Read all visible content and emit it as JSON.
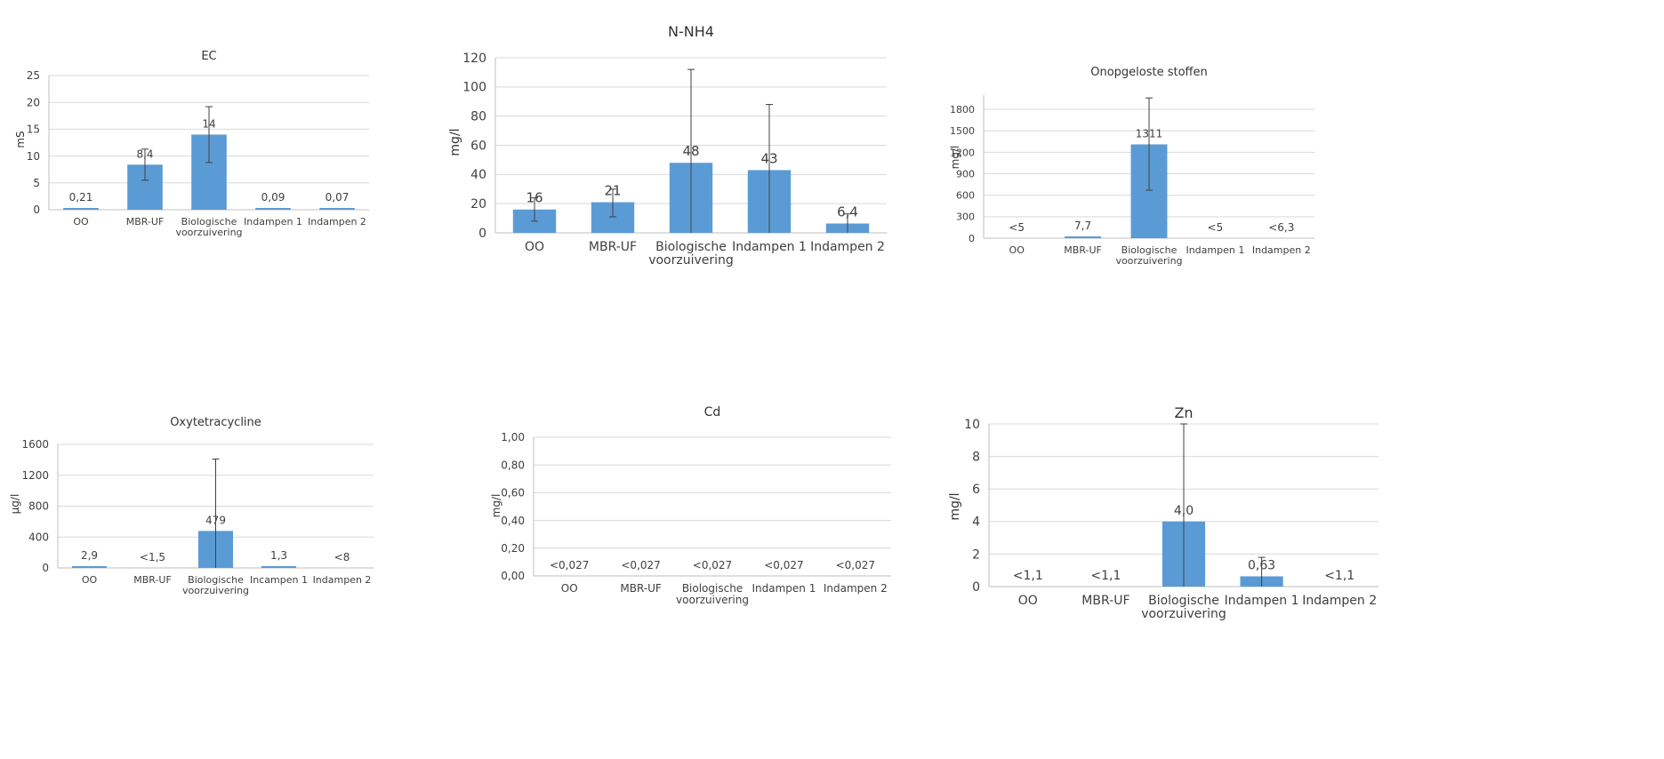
{
  "colors": {
    "bar": "#5b9bd5",
    "grid": "#d9d9d9",
    "text": "#404040"
  },
  "chart_data": [
    {
      "type": "bar",
      "title": "EC",
      "xlabel": "",
      "ylabel": "mS",
      "ylim": [
        0,
        25
      ],
      "yticks": [
        "0",
        "5",
        "10",
        "15",
        "20",
        "25"
      ],
      "ytick_values": [
        0,
        5,
        10,
        15,
        20,
        25
      ],
      "categories": [
        [
          "OO"
        ],
        [
          "MBR-UF"
        ],
        [
          "Biologische",
          "voorzuivering"
        ],
        [
          "Indampen 1"
        ],
        [
          "Indampen 2"
        ]
      ],
      "values": [
        0.21,
        8.4,
        14,
        0.09,
        0.07
      ],
      "labels": [
        "0,21",
        "8,4",
        "14",
        "0,09",
        "0,07"
      ],
      "error_high": [
        null,
        11.3,
        19.2,
        null,
        null
      ],
      "error_low": [
        null,
        5.5,
        8.8,
        null,
        null
      ]
    },
    {
      "type": "bar",
      "title": "N-NH4",
      "xlabel": "",
      "ylabel": "mg/l",
      "ylim": [
        0,
        120
      ],
      "yticks": [
        "0",
        "20",
        "40",
        "60",
        "80",
        "100",
        "120"
      ],
      "ytick_values": [
        0,
        20,
        40,
        60,
        80,
        100,
        120
      ],
      "categories": [
        [
          "OO"
        ],
        [
          "MBR-UF"
        ],
        [
          "Biologische",
          "voorzuivering"
        ],
        [
          "Indampen 1"
        ],
        [
          "Indampen 2"
        ]
      ],
      "values": [
        16,
        21,
        48,
        43,
        6.4
      ],
      "labels": [
        "16",
        "21",
        "48",
        "43",
        "6,4"
      ],
      "error_high": [
        24,
        30,
        112,
        88,
        13
      ],
      "error_low": [
        8,
        11,
        0,
        0,
        0
      ]
    },
    {
      "type": "bar",
      "title": "Onopgeloste stoffen",
      "xlabel": "",
      "ylabel": "mg/l",
      "ylim": [
        0,
        2000
      ],
      "yticks": [
        "0",
        "300",
        "600",
        "900",
        "1200",
        "1500",
        "1800"
      ],
      "ytick_values": [
        0,
        300,
        600,
        900,
        1200,
        1500,
        1800
      ],
      "categories": [
        [
          "OO"
        ],
        [
          "MBR-UF"
        ],
        [
          "Biologische",
          "voorzuivering"
        ],
        [
          "Indampen 1"
        ],
        [
          "Indampen 2"
        ]
      ],
      "values": [
        0,
        7.7,
        1311,
        0,
        0
      ],
      "labels": [
        "<5",
        "7,7",
        "1311",
        "<5",
        "<6,3"
      ],
      "error_high": [
        null,
        null,
        1960,
        null,
        null
      ],
      "error_low": [
        null,
        null,
        670,
        null,
        null
      ]
    },
    {
      "type": "bar",
      "title": "Oxytetracycline",
      "xlabel": "",
      "ylabel": "µg/l",
      "ylim": [
        0,
        1600
      ],
      "yticks": [
        "0",
        "400",
        "800",
        "1200",
        "1600"
      ],
      "ytick_values": [
        0,
        400,
        800,
        1200,
        1600
      ],
      "categories": [
        [
          "OO"
        ],
        [
          "MBR-UF"
        ],
        [
          "Biologische",
          "voorzuivering"
        ],
        [
          "Incampen 1"
        ],
        [
          "Indampen 2"
        ]
      ],
      "values": [
        2.9,
        0,
        479,
        1.3,
        0
      ],
      "labels": [
        "2,9",
        "<1,5",
        "479",
        "1,3",
        "<8"
      ],
      "error_high": [
        null,
        null,
        1410,
        null,
        null
      ],
      "error_low": [
        null,
        null,
        0,
        null,
        null
      ]
    },
    {
      "type": "bar",
      "title": "Cd",
      "xlabel": "",
      "ylabel": "mg/l",
      "ylim": [
        0,
        1
      ],
      "yticks": [
        "0,00",
        "0,20",
        "0,40",
        "0,60",
        "0,80",
        "1,00"
      ],
      "ytick_values": [
        0,
        0.2,
        0.4,
        0.6,
        0.8,
        1.0
      ],
      "categories": [
        [
          "OO"
        ],
        [
          "MBR-UF"
        ],
        [
          "Biologische",
          "voorzuivering"
        ],
        [
          "Indampen 1"
        ],
        [
          "Indampen 2"
        ]
      ],
      "values": [
        0,
        0,
        0,
        0,
        0
      ],
      "labels": [
        "<0,027",
        "<0,027",
        "<0,027",
        "<0,027",
        "<0,027"
      ],
      "error_high": [
        null,
        null,
        null,
        null,
        null
      ],
      "error_low": [
        null,
        null,
        null,
        null,
        null
      ]
    },
    {
      "type": "bar",
      "title": "Zn",
      "xlabel": "",
      "ylabel": "mg/l",
      "ylim": [
        0,
        10
      ],
      "yticks": [
        "0",
        "2",
        "4",
        "6",
        "8",
        "10"
      ],
      "ytick_values": [
        0,
        2,
        4,
        6,
        8,
        10
      ],
      "categories": [
        [
          "OO"
        ],
        [
          "MBR-UF"
        ],
        [
          "Biologische",
          "voorzuivering"
        ],
        [
          "Indampen 1"
        ],
        [
          "Indampen 2"
        ]
      ],
      "values": [
        0,
        0,
        4.0,
        0.63,
        0
      ],
      "labels": [
        "<1,1",
        "<1,1",
        "4,0",
        "0,63",
        "<1,1"
      ],
      "error_high": [
        null,
        null,
        10,
        1.8,
        null
      ],
      "error_low": [
        null,
        null,
        0,
        0,
        null
      ]
    }
  ]
}
